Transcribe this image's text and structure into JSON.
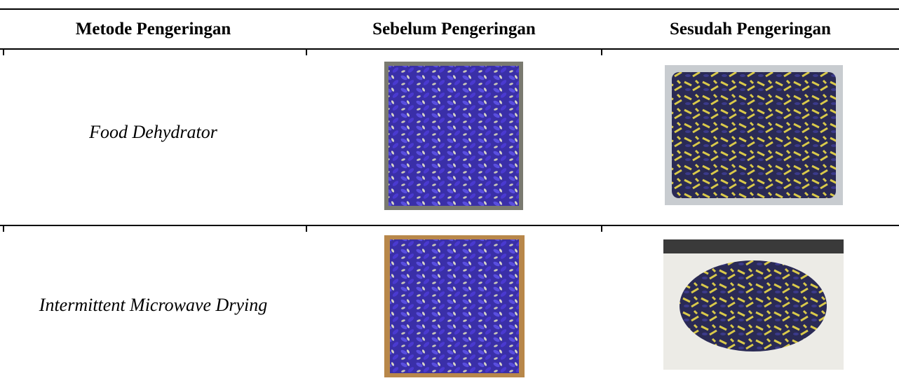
{
  "table": {
    "headers": [
      "Metode Pengeringan",
      "Sebelum Pengeringan",
      "Sesudah Pengeringan"
    ],
    "rows": [
      [
        "Food Dehydrator"
      ],
      [
        "Intermittent Microwave Drying"
      ]
    ]
  }
}
